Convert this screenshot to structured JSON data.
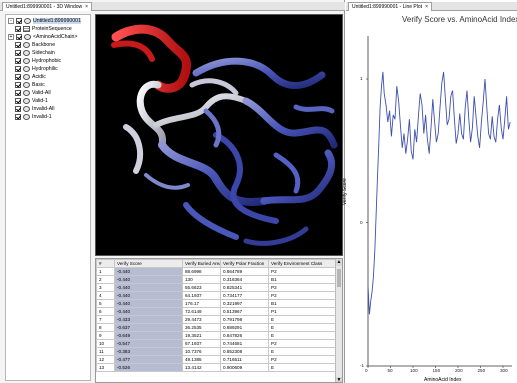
{
  "left_window": {
    "tab_title": "Untitled1:899990001 - 3D Window",
    "close_glyph": "×",
    "tree": [
      {
        "label": "Untitled1:899990001",
        "icon": "molecule-icon",
        "indent": 0,
        "expander": "-",
        "checked": true,
        "selected": true
      },
      {
        "label": "ProteinSequence",
        "icon": "sequence-icon",
        "indent": 1,
        "expander": "",
        "checked": true
      },
      {
        "label": "<AminoAcidChain>",
        "icon": "chain-icon",
        "indent": 0,
        "expander": "+",
        "checked": true
      },
      {
        "label": "Backbone",
        "icon": "group-icon",
        "indent": 1,
        "expander": "",
        "checked": true
      },
      {
        "label": "Sidechain",
        "icon": "group-icon",
        "indent": 1,
        "expander": "",
        "checked": true
      },
      {
        "label": "Hydrophobic",
        "icon": "group-icon",
        "indent": 1,
        "expander": "",
        "checked": true
      },
      {
        "label": "Hydrophilic",
        "icon": "group-icon",
        "indent": 1,
        "expander": "",
        "checked": true
      },
      {
        "label": "Acidic",
        "icon": "group-icon",
        "indent": 1,
        "expander": "",
        "checked": true
      },
      {
        "label": "Basic",
        "icon": "group-icon",
        "indent": 1,
        "expander": "",
        "checked": true
      },
      {
        "label": "Valid-All",
        "icon": "group-icon",
        "indent": 1,
        "expander": "",
        "checked": true
      },
      {
        "label": "Valid-1",
        "icon": "group-icon",
        "indent": 1,
        "expander": "",
        "checked": true
      },
      {
        "label": "Invalid-All",
        "icon": "group-icon",
        "indent": 1,
        "expander": "",
        "checked": true
      },
      {
        "label": "Invalid-1",
        "icon": "group-icon",
        "indent": 1,
        "expander": "",
        "checked": true
      }
    ],
    "table": {
      "headers": [
        "#",
        "Verify Score",
        "Verify Buried Area",
        "Verify Polar Fraction",
        "Verify Environment Class"
      ],
      "rows": [
        [
          "1",
          "-0.440",
          "88.6998",
          "0.664789",
          "P2"
        ],
        [
          "2",
          "-0.440",
          "130",
          "0.316364",
          "B1"
        ],
        [
          "3",
          "-0.440",
          "55.6623",
          "0.825341",
          "P2"
        ],
        [
          "4",
          "-0.440",
          "64.1937",
          "0.734177",
          "P2"
        ],
        [
          "5",
          "-0.440",
          "176.17",
          "0.321997",
          "B1"
        ],
        [
          "6",
          "-0.440",
          "72.6149",
          "0.513967",
          "P1"
        ],
        [
          "7",
          "-0.433",
          "29.4473",
          "0.791798",
          "E"
        ],
        [
          "8",
          "-0.637",
          "36.2535",
          "0.689291",
          "E"
        ],
        [
          "9",
          "-0.649",
          "19.3521",
          "0.847826",
          "E"
        ],
        [
          "10",
          "-0.547",
          "67.1937",
          "0.744681",
          "P2"
        ],
        [
          "11",
          "-0.383",
          "10.7376",
          "0.852308",
          "E"
        ],
        [
          "12",
          "-0.477",
          "49.1385",
          "0.716511",
          "P2"
        ],
        [
          "13",
          "-0.526",
          "13.4142",
          "0.900609",
          "E"
        ]
      ]
    },
    "scroll_up": "▲",
    "scroll_down": "▼"
  },
  "right_window": {
    "tab_title": "Untitled1:899990001 - Line Plot",
    "close_glyph": "×"
  },
  "colors": {
    "ribbon_blue": "#4a56b8",
    "ribbon_white": "#d8d8e6",
    "ribbon_red": "#d42020",
    "plot_line": "#3f4fb0",
    "score_column": "#b6bdd2"
  },
  "chart_data": {
    "type": "line",
    "title": "Verify Score vs. AminoAcid Index",
    "xlabel": "AminoAcid Index",
    "ylabel": "Verify Score",
    "xlim": [
      0,
      320
    ],
    "ylim": [
      -1,
      1.3
    ],
    "x_ticks": [
      "0",
      "50",
      "100",
      "150",
      "200",
      "250",
      "300"
    ],
    "y_ticks": [
      "-1",
      "0",
      "1"
    ],
    "grid": false,
    "series": [
      {
        "x": [
          0,
          3,
          6,
          9,
          12,
          15,
          18,
          21,
          24,
          27,
          30,
          33,
          36,
          40,
          44,
          48,
          52,
          56,
          60,
          64,
          68,
          72,
          76,
          80,
          84,
          88,
          92,
          96,
          100,
          104,
          108,
          112,
          116,
          120,
          124,
          128,
          132,
          136,
          140,
          144,
          148,
          152,
          156,
          160,
          164,
          168,
          172,
          176,
          180,
          184,
          188,
          192,
          196,
          200,
          204,
          208,
          212,
          216,
          220,
          224,
          228,
          232,
          236,
          240,
          244,
          248,
          252,
          256,
          260,
          264,
          268,
          272,
          276,
          280,
          284,
          288,
          292,
          296,
          300,
          304,
          308,
          312,
          316
        ],
        "y": [
          -0.44,
          -0.64,
          -0.55,
          -0.48,
          -0.38,
          -0.2,
          0.05,
          0.3,
          0.55,
          0.8,
          0.95,
          1.05,
          0.9,
          0.82,
          0.7,
          0.78,
          0.6,
          0.75,
          0.72,
          0.95,
          0.85,
          0.68,
          0.52,
          0.62,
          0.48,
          0.58,
          0.72,
          0.5,
          0.44,
          0.65,
          0.56,
          0.74,
          0.9,
          0.82,
          0.62,
          0.75,
          0.58,
          0.48,
          0.66,
          0.86,
          0.7,
          0.56,
          0.62,
          0.8,
          0.97,
          1.05,
          0.86,
          0.68,
          0.72,
          0.88,
          0.92,
          0.72,
          0.55,
          0.62,
          0.76,
          0.62,
          0.58,
          0.8,
          0.92,
          0.72,
          0.56,
          0.66,
          0.88,
          0.74,
          0.6,
          0.52,
          0.7,
          0.84,
          1.0,
          0.8,
          0.62,
          0.58,
          0.74,
          0.6,
          0.56,
          0.72,
          0.82,
          0.66,
          0.58,
          0.72,
          0.88,
          0.65,
          0.7
        ]
      }
    ]
  }
}
